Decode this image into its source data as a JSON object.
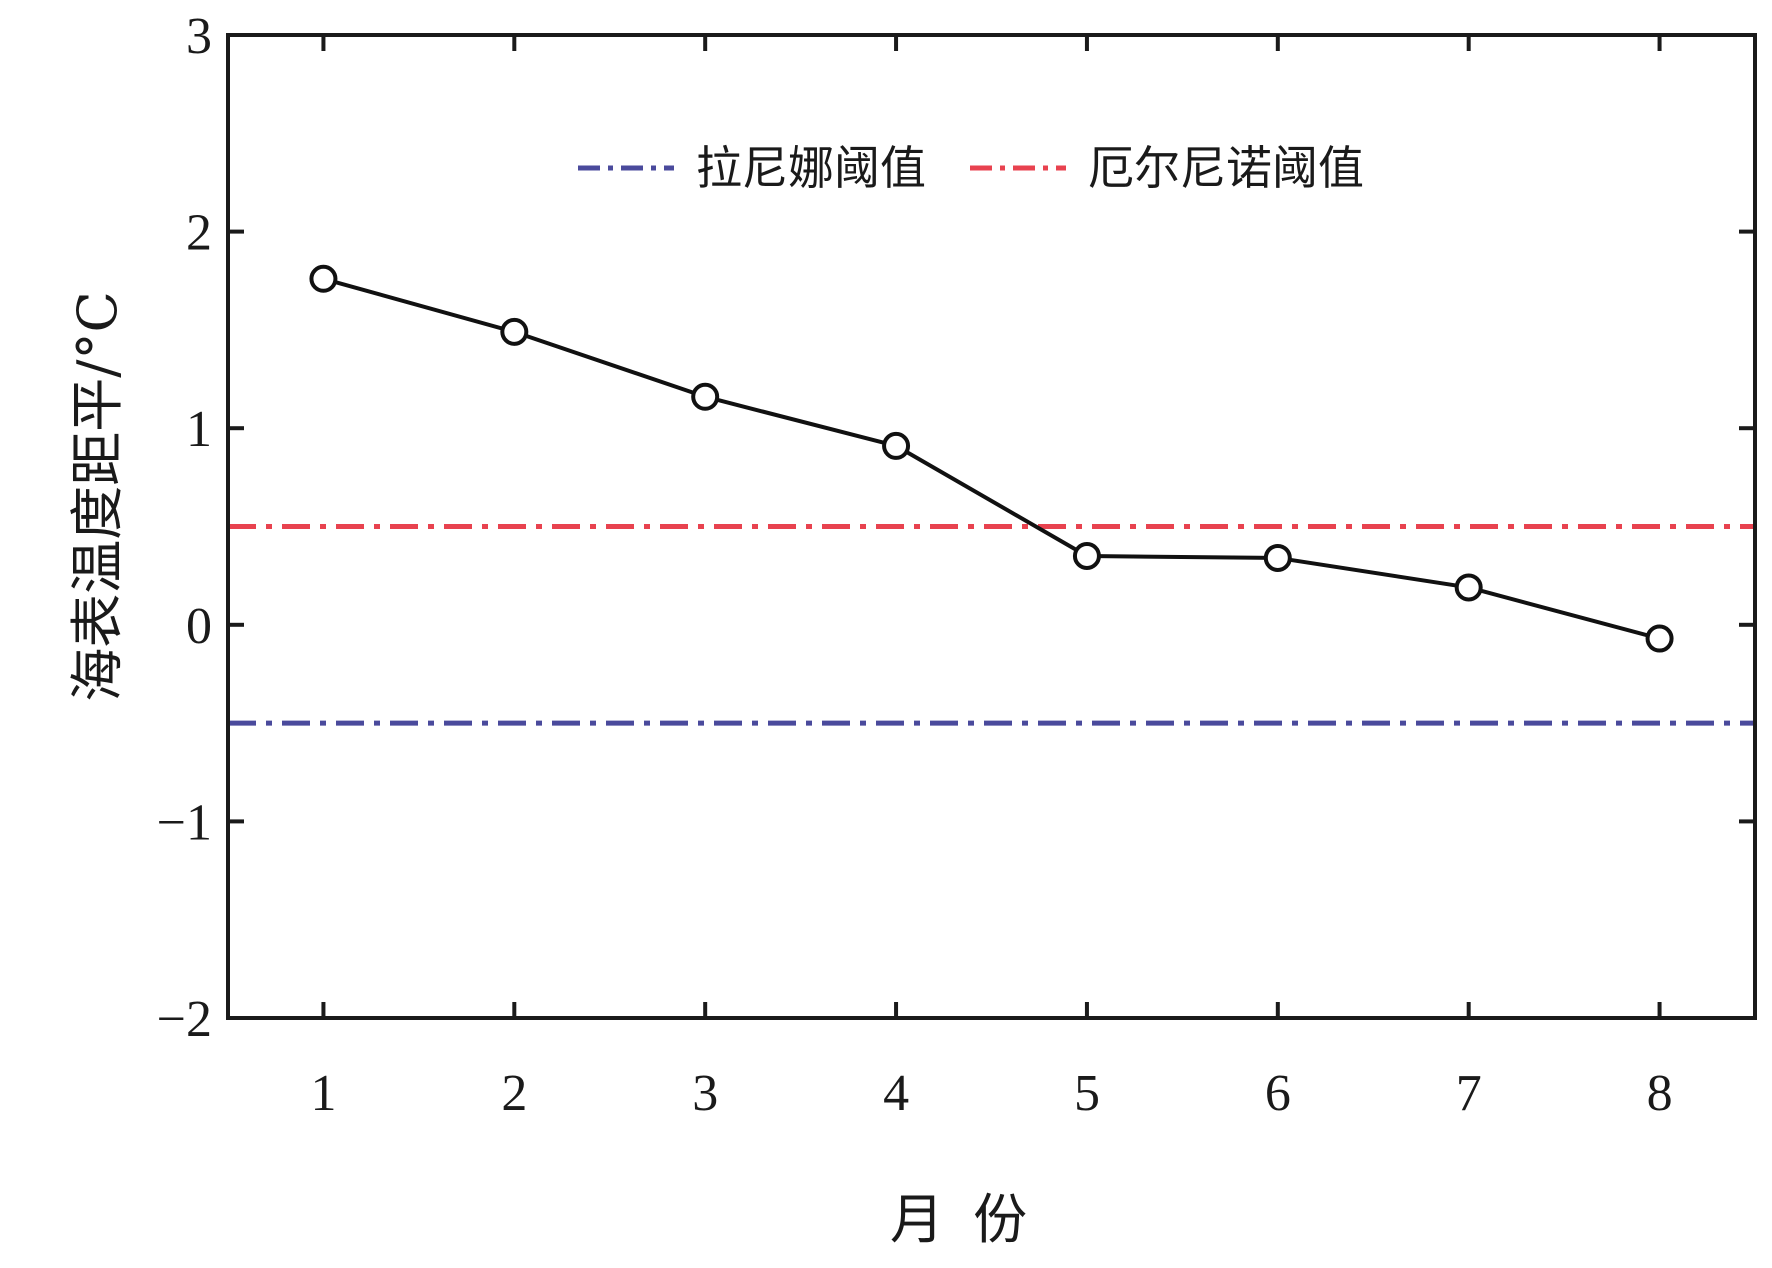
{
  "chart_data": {
    "type": "line",
    "xlabel": "月 份",
    "ylabel": "海表温度距平/°C",
    "xlim": [
      0.5,
      8.5
    ],
    "ylim": [
      -2,
      3
    ],
    "xticks": [
      1,
      2,
      3,
      4,
      5,
      6,
      7,
      8
    ],
    "yticks": [
      -2,
      -1,
      0,
      1,
      2,
      3
    ],
    "xtick_labels": [
      "1",
      "2",
      "3",
      "4",
      "5",
      "6",
      "7",
      "8"
    ],
    "ytick_labels": [
      "−2",
      "−1",
      "0",
      "1",
      "2",
      "3"
    ],
    "grid": false,
    "legend_position": "top-center",
    "series": [
      {
        "x": [
          1,
          2,
          3,
          4,
          5,
          6,
          7,
          8
        ],
        "values": [
          1.76,
          1.49,
          1.16,
          0.91,
          0.35,
          0.34,
          0.19,
          -0.07
        ],
        "color": "#111111",
        "marker": "open-circle"
      }
    ],
    "reference_lines": [
      {
        "name": "拉尼娜阈值",
        "y": -0.5,
        "color": "#4a4a9c",
        "style": "dash-dot"
      },
      {
        "name": "厄尔尼诺阈值",
        "y": 0.5,
        "color": "#e8424f",
        "style": "dash-dot"
      }
    ]
  }
}
